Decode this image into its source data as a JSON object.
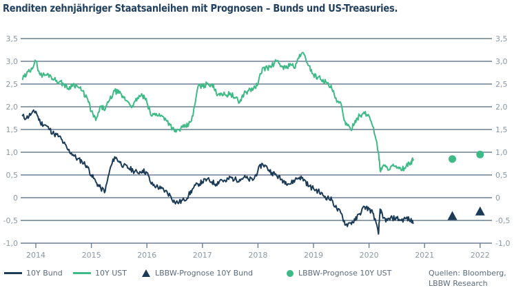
{
  "title": "Renditen zehnjähriger Staatsanleihen mit Prognosen – Bunds und US-Treasuries.",
  "source": [
    "Quellen: Bloomberg,",
    "LBBW Research"
  ],
  "colors": {
    "bund": "#1c3b57",
    "ust": "#3dba85",
    "grid": "#6b7d90"
  },
  "chart_data": {
    "type": "line",
    "title": "Renditen zehnjähriger Staatsanleihen mit Prognosen – Bunds und US-Treasuries.",
    "xlabel": "",
    "ylabel": "",
    "ylim": [
      -1.0,
      3.5
    ],
    "xlim": [
      2013.75,
      2022.25
    ],
    "grid": true,
    "legend_placement": "bottom",
    "y_ticks": [
      "3,5",
      "3,0",
      "2,5",
      "2,0",
      "1,5",
      "1,0",
      "0,5",
      "0",
      "-0,5",
      "-1,0"
    ],
    "y_tick_values": [
      3.5,
      3.0,
      2.5,
      2.0,
      1.5,
      1.0,
      0.5,
      0.0,
      -0.5,
      -1.0
    ],
    "x_ticks": [
      "2014",
      "2015",
      "2016",
      "2017",
      "2018",
      "2019",
      "2020",
      "2021",
      "2022"
    ],
    "x_tick_values": [
      2014,
      2015,
      2016,
      2017,
      2018,
      2019,
      2020,
      2021,
      2022
    ],
    "series": [
      {
        "name": "10Y Bund",
        "type": "line",
        "x": [
          2013.75,
          2013.83,
          2013.92,
          2014.0,
          2014.08,
          2014.17,
          2014.25,
          2014.33,
          2014.42,
          2014.5,
          2014.58,
          2014.67,
          2014.75,
          2014.83,
          2014.92,
          2015.0,
          2015.08,
          2015.17,
          2015.25,
          2015.33,
          2015.42,
          2015.5,
          2015.58,
          2015.67,
          2015.75,
          2015.83,
          2015.92,
          2016.0,
          2016.08,
          2016.17,
          2016.25,
          2016.33,
          2016.42,
          2016.5,
          2016.58,
          2016.67,
          2016.75,
          2016.83,
          2016.92,
          2017.0,
          2017.08,
          2017.17,
          2017.25,
          2017.33,
          2017.42,
          2017.5,
          2017.58,
          2017.67,
          2017.75,
          2017.83,
          2017.92,
          2018.0,
          2018.08,
          2018.17,
          2018.25,
          2018.33,
          2018.42,
          2018.5,
          2018.58,
          2018.67,
          2018.75,
          2018.83,
          2018.92,
          2019.0,
          2019.08,
          2019.17,
          2019.25,
          2019.33,
          2019.42,
          2019.5,
          2019.58,
          2019.67,
          2019.75,
          2019.83,
          2019.92,
          2020.0,
          2020.08,
          2020.17,
          2020.2,
          2020.25,
          2020.33,
          2020.42,
          2020.5,
          2020.58,
          2020.67,
          2020.75,
          2020.8
        ],
        "values": [
          1.8,
          1.75,
          1.85,
          1.9,
          1.65,
          1.6,
          1.5,
          1.4,
          1.35,
          1.2,
          1.05,
          0.95,
          0.85,
          0.8,
          0.7,
          0.5,
          0.35,
          0.2,
          0.15,
          0.6,
          0.9,
          0.8,
          0.7,
          0.65,
          0.6,
          0.55,
          0.6,
          0.55,
          0.3,
          0.25,
          0.2,
          0.15,
          0.05,
          -0.1,
          -0.1,
          -0.05,
          0.05,
          0.2,
          0.3,
          0.35,
          0.4,
          0.35,
          0.3,
          0.4,
          0.35,
          0.45,
          0.4,
          0.4,
          0.45,
          0.4,
          0.4,
          0.6,
          0.75,
          0.65,
          0.55,
          0.5,
          0.4,
          0.35,
          0.3,
          0.4,
          0.45,
          0.4,
          0.25,
          0.2,
          0.15,
          0.05,
          0.0,
          -0.05,
          -0.25,
          -0.35,
          -0.6,
          -0.55,
          -0.5,
          -0.35,
          -0.2,
          -0.25,
          -0.35,
          -0.8,
          -0.25,
          -0.45,
          -0.5,
          -0.45,
          -0.45,
          -0.5,
          -0.45,
          -0.5,
          -0.55
        ]
      },
      {
        "name": "10Y UST",
        "type": "line",
        "x": [
          2013.75,
          2013.83,
          2013.92,
          2014.0,
          2014.08,
          2014.17,
          2014.25,
          2014.33,
          2014.42,
          2014.5,
          2014.58,
          2014.67,
          2014.75,
          2014.83,
          2014.92,
          2015.0,
          2015.08,
          2015.17,
          2015.25,
          2015.33,
          2015.42,
          2015.5,
          2015.58,
          2015.67,
          2015.75,
          2015.83,
          2015.92,
          2016.0,
          2016.08,
          2016.17,
          2016.25,
          2016.33,
          2016.42,
          2016.5,
          2016.58,
          2016.67,
          2016.75,
          2016.83,
          2016.92,
          2017.0,
          2017.08,
          2017.17,
          2017.25,
          2017.33,
          2017.42,
          2017.5,
          2017.58,
          2017.67,
          2017.75,
          2017.83,
          2017.92,
          2018.0,
          2018.08,
          2018.17,
          2018.25,
          2018.33,
          2018.42,
          2018.5,
          2018.58,
          2018.67,
          2018.75,
          2018.83,
          2018.92,
          2019.0,
          2019.08,
          2019.17,
          2019.25,
          2019.33,
          2019.42,
          2019.5,
          2019.58,
          2019.67,
          2019.75,
          2019.83,
          2019.92,
          2020.0,
          2020.08,
          2020.17,
          2020.2,
          2020.25,
          2020.33,
          2020.42,
          2020.5,
          2020.58,
          2020.67,
          2020.75,
          2020.8
        ],
        "values": [
          2.6,
          2.7,
          2.85,
          3.0,
          2.7,
          2.7,
          2.7,
          2.6,
          2.55,
          2.5,
          2.4,
          2.5,
          2.45,
          2.35,
          2.2,
          1.9,
          1.7,
          2.0,
          1.95,
          2.15,
          2.35,
          2.3,
          2.2,
          2.1,
          2.0,
          2.2,
          2.25,
          2.1,
          1.8,
          1.85,
          1.8,
          1.75,
          1.6,
          1.45,
          1.5,
          1.55,
          1.6,
          1.8,
          2.45,
          2.45,
          2.5,
          2.5,
          2.3,
          2.3,
          2.25,
          2.3,
          2.2,
          2.1,
          2.3,
          2.35,
          2.4,
          2.5,
          2.85,
          2.85,
          2.9,
          3.0,
          2.9,
          2.85,
          2.95,
          2.85,
          3.15,
          3.15,
          2.9,
          2.7,
          2.65,
          2.6,
          2.5,
          2.4,
          2.1,
          2.05,
          1.6,
          1.5,
          1.7,
          1.8,
          1.85,
          1.8,
          1.55,
          1.0,
          0.6,
          0.7,
          0.65,
          0.7,
          0.65,
          0.6,
          0.7,
          0.75,
          0.85
        ]
      },
      {
        "name": "LBBW-Prognose 10Y Bund",
        "type": "scatter",
        "marker": "triangle",
        "x": [
          2021.5,
          2022.0
        ],
        "values": [
          -0.4,
          -0.3
        ]
      },
      {
        "name": "LBBW-Prognose 10Y UST",
        "type": "scatter",
        "marker": "circle",
        "x": [
          2021.5,
          2022.0
        ],
        "values": [
          0.85,
          0.95
        ]
      }
    ]
  }
}
